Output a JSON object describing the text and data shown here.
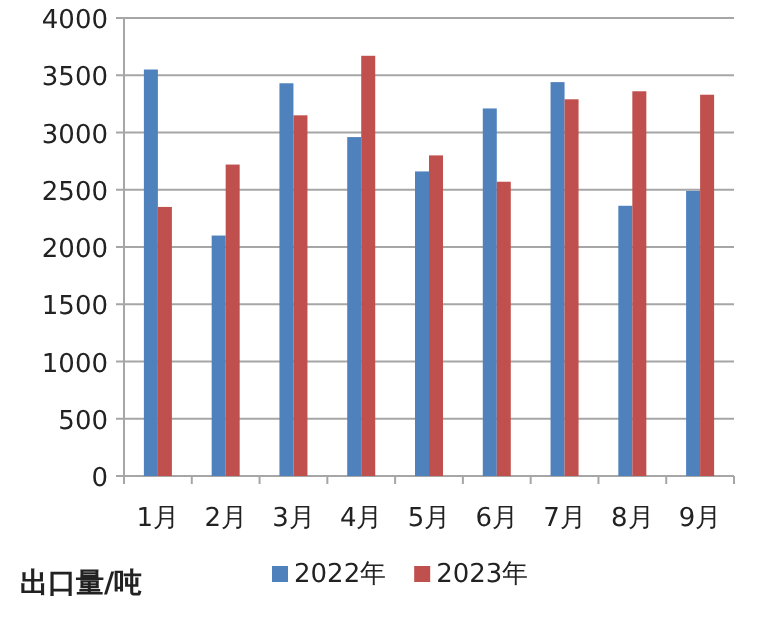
{
  "chart_data": {
    "type": "bar",
    "ylabel": "出口量/吨",
    "categories": [
      "1月",
      "2月",
      "3月",
      "4月",
      "5月",
      "6月",
      "7月",
      "8月",
      "9月"
    ],
    "series": [
      {
        "name": "2022年",
        "color": "#4f81bd",
        "values": [
          3550,
          2100,
          3430,
          2960,
          2660,
          3210,
          3440,
          2360,
          2490
        ]
      },
      {
        "name": "2023年",
        "color": "#c0504d",
        "values": [
          2350,
          2720,
          3150,
          3670,
          2800,
          2570,
          3290,
          3360,
          3330
        ]
      }
    ],
    "ylim": [
      0,
      4000
    ],
    "yticks": [
      0,
      500,
      1000,
      1500,
      2000,
      2500,
      3000,
      3500,
      4000
    ],
    "grid": "y",
    "legend": "bottom"
  }
}
